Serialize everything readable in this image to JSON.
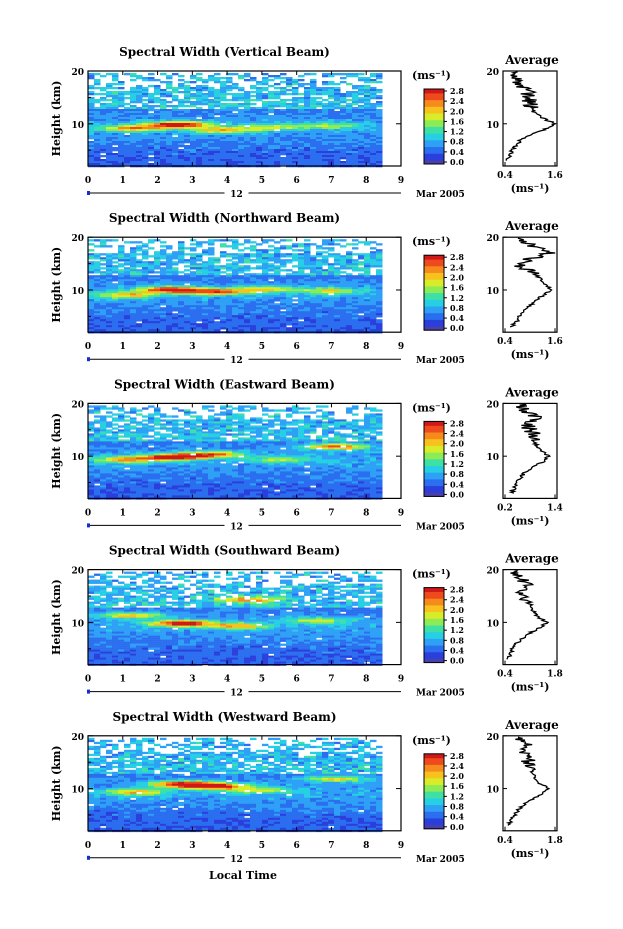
{
  "colors": {
    "scale": [
      "#4b3fa8",
      "#2a3fdc",
      "#2b6ff0",
      "#2ea0f5",
      "#27cfe3",
      "#3fe0a6",
      "#8cec56",
      "#d8ec2a",
      "#f7c21e",
      "#f78a1d",
      "#ee4a1d",
      "#d01818"
    ],
    "background": "#ffffff",
    "line": "#000000"
  },
  "figure": {
    "xlabel": "Local Time",
    "day_label": "12",
    "month_label": "Mar 2005",
    "colorbar_unit": "(ms⁻¹)",
    "colorbar_ticks": [
      "0.0",
      "0.4",
      "0.8",
      "1.2",
      "1.6",
      "2.0",
      "2.4",
      "2.8"
    ],
    "avg_title": "Average",
    "avg_xlabel": "(ms⁻¹)"
  },
  "chart_data": [
    {
      "type": "heatmap",
      "title": "Spectral Width (Vertical Beam)",
      "xlabel": "Local Time",
      "ylabel": "Height (km)",
      "xlim": [
        0,
        9
      ],
      "ylim": [
        2,
        20
      ],
      "x_ticks": [
        "0",
        "1",
        "2",
        "3",
        "4",
        "5",
        "6",
        "7",
        "8",
        "9"
      ],
      "y_ticks": [
        "20",
        "10"
      ],
      "data_x_range": [
        0,
        8.4
      ],
      "colorbar": {
        "unit": "ms^-1",
        "range": [
          0,
          2.8
        ],
        "ticks": [
          "0.0",
          "0.4",
          "0.8",
          "1.2",
          "1.6",
          "2.0",
          "2.4",
          "2.8"
        ]
      },
      "features": [
        {
          "t": 2.5,
          "h": 10.0,
          "value": 2.8
        },
        {
          "t": 1.2,
          "h": 9.3,
          "value": 2.0
        },
        {
          "t": 3.8,
          "h": 9.0,
          "value": 1.8
        },
        {
          "t": 5.2,
          "h": 9.5,
          "value": 1.5
        },
        {
          "t": 6.8,
          "h": 9.8,
          "value": 1.4
        }
      ],
      "average_profile": {
        "title": "Average",
        "xlabel": "(ms⁻¹)",
        "xlim": [
          0.4,
          1.6
        ],
        "x_ticks": [
          "0.4",
          "1.6"
        ],
        "y_ticks": [
          "20",
          "10"
        ],
        "height": [
          3,
          4,
          5,
          6,
          7,
          8,
          9,
          10,
          11,
          12,
          13,
          14,
          15,
          16,
          17,
          18,
          19
        ],
        "value": [
          0.45,
          0.55,
          0.6,
          0.7,
          0.8,
          1.0,
          1.35,
          1.55,
          1.3,
          1.1,
          1.05,
          1.0,
          0.95,
          0.95,
          0.85,
          0.75,
          0.7
        ]
      }
    },
    {
      "type": "heatmap",
      "title": "Spectral Width (Northward Beam)",
      "xlabel": "Local Time",
      "ylabel": "Height (km)",
      "xlim": [
        0,
        9
      ],
      "ylim": [
        2,
        20
      ],
      "x_ticks": [
        "0",
        "1",
        "2",
        "3",
        "4",
        "5",
        "6",
        "7",
        "8",
        "9"
      ],
      "y_ticks": [
        "20",
        "10"
      ],
      "data_x_range": [
        0,
        8.4
      ],
      "colorbar": {
        "unit": "ms^-1",
        "range": [
          0,
          2.8
        ],
        "ticks": [
          "0.0",
          "0.4",
          "0.8",
          "1.2",
          "1.6",
          "2.0",
          "2.4",
          "2.8"
        ]
      },
      "features": [
        {
          "t": 2.3,
          "h": 10.2,
          "value": 2.8
        },
        {
          "t": 3.6,
          "h": 9.8,
          "value": 2.2
        },
        {
          "t": 1.0,
          "h": 9.2,
          "value": 1.9
        },
        {
          "t": 5.0,
          "h": 10.3,
          "value": 1.7
        },
        {
          "t": 6.9,
          "h": 10.0,
          "value": 1.6
        }
      ],
      "average_profile": {
        "title": "Average",
        "xlabel": "(ms⁻¹)",
        "xlim": [
          0.4,
          1.6
        ],
        "x_ticks": [
          "0.4",
          "1.6"
        ],
        "y_ticks": [
          "20",
          "10"
        ],
        "height": [
          3,
          4,
          5,
          6,
          7,
          8,
          9,
          10,
          11,
          12,
          13,
          14,
          15,
          16,
          17,
          18,
          19
        ],
        "value": [
          0.6,
          0.7,
          0.75,
          0.85,
          1.0,
          1.1,
          1.3,
          1.45,
          1.35,
          1.25,
          1.1,
          0.9,
          0.75,
          1.05,
          1.4,
          1.2,
          0.9
        ]
      }
    },
    {
      "type": "heatmap",
      "title": "Spectral Width (Eastward Beam)",
      "xlabel": "Local Time",
      "ylabel": "Height (km)",
      "xlim": [
        0,
        9
      ],
      "ylim": [
        2,
        20
      ],
      "x_ticks": [
        "0",
        "1",
        "2",
        "3",
        "4",
        "5",
        "6",
        "7",
        "8",
        "9"
      ],
      "y_ticks": [
        "20",
        "10"
      ],
      "data_x_range": [
        0,
        8.4
      ],
      "colorbar": {
        "unit": "ms^-1",
        "range": [
          0,
          2.8
        ],
        "ticks": [
          "0.0",
          "0.4",
          "0.8",
          "1.2",
          "1.6",
          "2.0",
          "2.4",
          "2.8"
        ]
      },
      "features": [
        {
          "t": 2.4,
          "h": 10.0,
          "value": 2.8
        },
        {
          "t": 1.0,
          "h": 9.5,
          "value": 2.0
        },
        {
          "t": 3.5,
          "h": 10.5,
          "value": 2.1
        },
        {
          "t": 7.0,
          "h": 12.0,
          "value": 2.4
        },
        {
          "t": 5.5,
          "h": 9.5,
          "value": 1.4
        }
      ],
      "average_profile": {
        "title": "Average",
        "xlabel": "(ms⁻¹)",
        "xlim": [
          0.2,
          1.4
        ],
        "x_ticks": [
          "0.2",
          "1.4"
        ],
        "y_ticks": [
          "20",
          "10"
        ],
        "height": [
          3,
          4,
          5,
          6,
          7,
          8,
          9,
          10,
          11,
          12,
          13,
          14,
          15,
          16,
          17,
          18,
          19
        ],
        "value": [
          0.4,
          0.45,
          0.5,
          0.6,
          0.7,
          0.85,
          1.1,
          1.2,
          1.05,
          0.95,
          0.85,
          0.9,
          0.8,
          0.75,
          0.95,
          0.8,
          0.65
        ]
      }
    },
    {
      "type": "heatmap",
      "title": "Spectral Width (Southward Beam)",
      "xlabel": "Local Time",
      "ylabel": "Height (km)",
      "xlim": [
        0,
        9
      ],
      "ylim": [
        2,
        20
      ],
      "x_ticks": [
        "0",
        "1",
        "2",
        "3",
        "4",
        "5",
        "6",
        "7",
        "8",
        "9"
      ],
      "y_ticks": [
        "20",
        "10"
      ],
      "data_x_range": [
        0,
        8.4
      ],
      "colorbar": {
        "unit": "ms^-1",
        "range": [
          0,
          2.8
        ],
        "ticks": [
          "0.0",
          "0.4",
          "0.8",
          "1.2",
          "1.6",
          "2.0",
          "2.4",
          "2.8"
        ]
      },
      "features": [
        {
          "t": 2.6,
          "h": 10.0,
          "value": 2.8
        },
        {
          "t": 1.2,
          "h": 11.5,
          "value": 1.9
        },
        {
          "t": 4.2,
          "h": 9.5,
          "value": 1.9
        },
        {
          "t": 4.5,
          "h": 14.5,
          "value": 2.0
        },
        {
          "t": 6.5,
          "h": 10.5,
          "value": 1.6
        }
      ],
      "average_profile": {
        "title": "Average",
        "xlabel": "(ms⁻¹)",
        "xlim": [
          0.4,
          1.8
        ],
        "x_ticks": [
          "0.4",
          "1.8"
        ],
        "y_ticks": [
          "20",
          "10"
        ],
        "height": [
          3,
          4,
          5,
          6,
          7,
          8,
          9,
          10,
          11,
          12,
          13,
          14,
          15,
          16,
          17,
          18,
          19
        ],
        "value": [
          0.5,
          0.6,
          0.65,
          0.75,
          0.9,
          1.1,
          1.35,
          1.55,
          1.3,
          1.2,
          1.1,
          1.0,
          0.9,
          0.85,
          1.05,
          0.9,
          0.75
        ]
      }
    },
    {
      "type": "heatmap",
      "title": "Spectral Width (Westward Beam)",
      "xlabel": "Local Time",
      "ylabel": "Height (km)",
      "xlim": [
        0,
        9
      ],
      "ylim": [
        2,
        20
      ],
      "x_ticks": [
        "0",
        "1",
        "2",
        "3",
        "4",
        "5",
        "6",
        "7",
        "8",
        "9"
      ],
      "y_ticks": [
        "20",
        "10"
      ],
      "data_x_range": [
        0,
        8.4
      ],
      "colorbar": {
        "unit": "ms^-1",
        "range": [
          0,
          2.8
        ],
        "ticks": [
          "0.0",
          "0.4",
          "0.8",
          "1.2",
          "1.6",
          "2.0",
          "2.4",
          "2.8"
        ]
      },
      "features": [
        {
          "t": 2.7,
          "h": 11.0,
          "value": 2.8
        },
        {
          "t": 3.6,
          "h": 10.6,
          "value": 2.4
        },
        {
          "t": 1.3,
          "h": 9.5,
          "value": 1.9
        },
        {
          "t": 4.8,
          "h": 9.8,
          "value": 1.6
        },
        {
          "t": 7.0,
          "h": 12.0,
          "value": 1.8
        }
      ],
      "average_profile": {
        "title": "Average",
        "xlabel": "(ms⁻¹)",
        "xlim": [
          0.4,
          1.8
        ],
        "x_ticks": [
          "0.4",
          "1.8"
        ],
        "y_ticks": [
          "20",
          "10"
        ],
        "height": [
          3,
          4,
          5,
          6,
          7,
          8,
          9,
          10,
          11,
          12,
          13,
          14,
          15,
          16,
          17,
          18,
          19
        ],
        "value": [
          0.55,
          0.6,
          0.7,
          0.8,
          0.95,
          1.15,
          1.4,
          1.6,
          1.35,
          1.25,
          1.15,
          1.1,
          1.0,
          1.2,
          0.95,
          1.1,
          0.8
        ]
      }
    }
  ]
}
